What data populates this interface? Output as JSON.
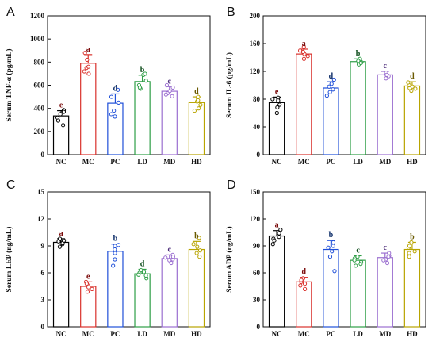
{
  "chart_data": [
    {
      "panel": "A",
      "type": "bar",
      "ylabel": "Serum TNF-α (pg/mL)",
      "ylim": [
        0,
        1200
      ],
      "yticks": [
        0,
        200,
        400,
        600,
        800,
        1000,
        1200
      ],
      "categories": [
        "NC",
        "MC",
        "PC",
        "LD",
        "MD",
        "HD"
      ],
      "values": [
        335,
        790,
        445,
        632,
        548,
        450
      ],
      "errors": [
        45,
        75,
        80,
        55,
        40,
        50
      ],
      "significance": [
        "e",
        "a",
        "d",
        "b",
        "c",
        "d"
      ],
      "points": [
        [
          255,
          320,
          350,
          385,
          295,
          370
        ],
        [
          700,
          820,
          750,
          760,
          880,
          720
        ],
        [
          330,
          380,
          450,
          500,
          560,
          350
        ],
        [
          570,
          640,
          690,
          600,
          580,
          700
        ],
        [
          505,
          550,
          580,
          530,
          600,
          520
        ],
        [
          400,
          460,
          500,
          430,
          470,
          380
        ]
      ]
    },
    {
      "panel": "B",
      "type": "bar",
      "ylabel": "Serum IL-6 (pg/mL)",
      "ylim": [
        0,
        200
      ],
      "yticks": [
        0,
        40,
        80,
        120,
        160,
        200
      ],
      "categories": [
        "NC",
        "MC",
        "PC",
        "LD",
        "MD",
        "HD"
      ],
      "values": [
        75,
        145,
        96,
        134,
        115,
        99
      ],
      "errors": [
        8,
        7,
        9,
        4,
        5,
        6
      ],
      "significance": [
        "e",
        "a",
        "d",
        "b",
        "c",
        "d"
      ],
      "points": [
        [
          60,
          68,
          72,
          80,
          82,
          78
        ],
        [
          138,
          145,
          150,
          155,
          142,
          148
        ],
        [
          85,
          90,
          98,
          102,
          108,
          94
        ],
        [
          130,
          133,
          136,
          138,
          135,
          132
        ],
        [
          110,
          114,
          116,
          118,
          113,
          115
        ],
        [
          92,
          96,
          100,
          104,
          98,
          95
        ]
      ]
    },
    {
      "panel": "C",
      "type": "bar",
      "ylabel": "Serum LEP (ng/mL)",
      "ylim": [
        0,
        15
      ],
      "yticks": [
        0,
        3,
        6,
        9,
        12,
        15
      ],
      "categories": [
        "NC",
        "MC",
        "PC",
        "LD",
        "MD",
        "HD"
      ],
      "values": [
        9.4,
        4.5,
        8.4,
        5.9,
        7.6,
        8.6
      ],
      "errors": [
        0.4,
        0.5,
        0.8,
        0.5,
        0.4,
        0.9
      ],
      "significance": [
        "a",
        "e",
        "b",
        "d",
        "c",
        "b"
      ],
      "points": [
        [
          8.9,
          9.2,
          9.5,
          9.8,
          9.3,
          9.6
        ],
        [
          3.9,
          4.2,
          4.6,
          5.0,
          4.4,
          4.8
        ],
        [
          6.8,
          7.5,
          8.6,
          9.0,
          8.2,
          9.1
        ],
        [
          5.4,
          5.7,
          6.0,
          6.3,
          5.8,
          6.1
        ],
        [
          7.1,
          7.4,
          7.7,
          8.0,
          7.5,
          7.8
        ],
        [
          7.8,
          8.2,
          9.2,
          9.9,
          8.5,
          8.9
        ]
      ]
    },
    {
      "panel": "D",
      "type": "bar",
      "ylabel": "Serum ADP (ng/mL)",
      "ylim": [
        0,
        150
      ],
      "yticks": [
        0,
        30,
        60,
        90,
        120,
        150
      ],
      "categories": [
        "NC",
        "MC",
        "PC",
        "LD",
        "MD",
        "HD"
      ],
      "values": [
        101,
        50,
        86,
        74,
        77,
        86
      ],
      "errors": [
        6,
        5,
        10,
        5,
        5,
        8
      ],
      "significance": [
        "a",
        "d",
        "b",
        "c",
        "c",
        "b"
      ],
      "points": [
        [
          92,
          98,
          104,
          108,
          100,
          96
        ],
        [
          42,
          46,
          50,
          54,
          48,
          52
        ],
        [
          62,
          78,
          88,
          94,
          90,
          84
        ],
        [
          68,
          72,
          76,
          78,
          70,
          74
        ],
        [
          71,
          75,
          79,
          82,
          74,
          78
        ],
        [
          78,
          82,
          88,
          94,
          90,
          84
        ]
      ]
    }
  ],
  "panel_letters": [
    "A",
    "B",
    "C",
    "D"
  ],
  "colors": {
    "NC": "#000000",
    "MC": "#d9312c",
    "PC": "#1f4fd8",
    "LD": "#2e9e46",
    "MD": "#9b6fd0",
    "HD": "#b8a400"
  },
  "sig_colors": {
    "NC": "#7a0a0a",
    "MC": "#7a0a0a",
    "PC": "#0a2a66",
    "LD": "#0a4a18",
    "MD": "#4a2a78",
    "HD": "#6a5a00"
  }
}
